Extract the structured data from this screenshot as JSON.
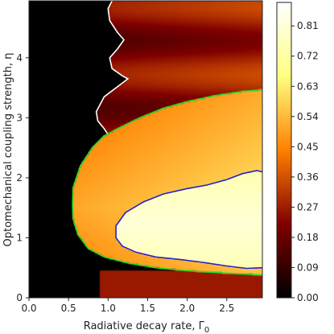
{
  "chart_data": {
    "type": "heatmap",
    "xlabel": "Radiative decay rate, Γ",
    "xlabel_sub": "0",
    "ylabel": "Optomechanical coupling strength, η",
    "xlim": [
      0.0,
      2.95
    ],
    "ylim": [
      0,
      4.95
    ],
    "xticks": [
      0.0,
      0.5,
      1.0,
      1.5,
      2.0,
      2.5
    ],
    "xtick_labels": [
      "0.0",
      "0.5",
      "1.0",
      "1.5",
      "2.0",
      "2.5"
    ],
    "yticks": [
      0,
      1,
      2,
      3,
      4
    ],
    "ytick_labels": [
      "0",
      "1",
      "2",
      "3",
      "4"
    ],
    "colorbar": {
      "min": 0.0,
      "max": 0.88,
      "ticks": [
        0.0,
        0.09,
        0.18,
        0.27,
        0.36,
        0.45,
        0.54,
        0.63,
        0.72,
        0.81
      ],
      "tick_labels": [
        "0.00",
        "0.09",
        "0.18",
        "0.27",
        "0.36",
        "0.45",
        "0.54",
        "0.63",
        "0.72",
        "0.81"
      ],
      "colormap": "afmhot"
    },
    "contours": [
      {
        "color": "#ffffff",
        "points": [
          [
            1.05,
            4.95
          ],
          [
            1.0,
            4.82
          ],
          [
            1.02,
            4.62
          ],
          [
            1.12,
            4.42
          ],
          [
            1.2,
            4.3
          ],
          [
            1.12,
            4.15
          ],
          [
            1.02,
            4.0
          ],
          [
            1.05,
            3.82
          ],
          [
            1.18,
            3.7
          ],
          [
            1.25,
            3.65
          ],
          [
            1.15,
            3.55
          ],
          [
            0.95,
            3.35
          ],
          [
            0.85,
            3.1
          ],
          [
            0.87,
            2.95
          ],
          [
            0.95,
            2.82
          ],
          [
            1.0,
            2.72
          ]
        ]
      },
      {
        "color": "#22dd22",
        "points": [
          [
            2.95,
            3.47
          ],
          [
            2.7,
            3.44
          ],
          [
            2.35,
            3.37
          ],
          [
            2.0,
            3.27
          ],
          [
            1.7,
            3.16
          ],
          [
            1.4,
            3.0
          ],
          [
            1.15,
            2.84
          ],
          [
            0.95,
            2.7
          ],
          [
            0.8,
            2.5
          ],
          [
            0.65,
            2.2
          ],
          [
            0.56,
            1.85
          ],
          [
            0.55,
            1.55
          ],
          [
            0.56,
            1.3
          ],
          [
            0.62,
            1.05
          ],
          [
            0.75,
            0.82
          ],
          [
            0.95,
            0.68
          ],
          [
            1.25,
            0.58
          ],
          [
            1.6,
            0.5
          ],
          [
            2.0,
            0.45
          ],
          [
            2.5,
            0.41
          ],
          [
            2.95,
            0.38
          ]
        ]
      },
      {
        "color": "#2222cc",
        "points": [
          [
            2.95,
            2.1
          ],
          [
            2.88,
            2.12
          ],
          [
            2.7,
            2.07
          ],
          [
            2.5,
            1.97
          ],
          [
            2.25,
            1.88
          ],
          [
            2.0,
            1.82
          ],
          [
            1.7,
            1.73
          ],
          [
            1.45,
            1.6
          ],
          [
            1.22,
            1.42
          ],
          [
            1.1,
            1.2
          ],
          [
            1.1,
            1.0
          ],
          [
            1.18,
            0.86
          ],
          [
            1.35,
            0.76
          ],
          [
            1.6,
            0.68
          ],
          [
            1.9,
            0.64
          ],
          [
            2.2,
            0.59
          ],
          [
            2.5,
            0.53
          ],
          [
            2.75,
            0.49
          ],
          [
            2.95,
            0.5
          ]
        ]
      }
    ]
  }
}
